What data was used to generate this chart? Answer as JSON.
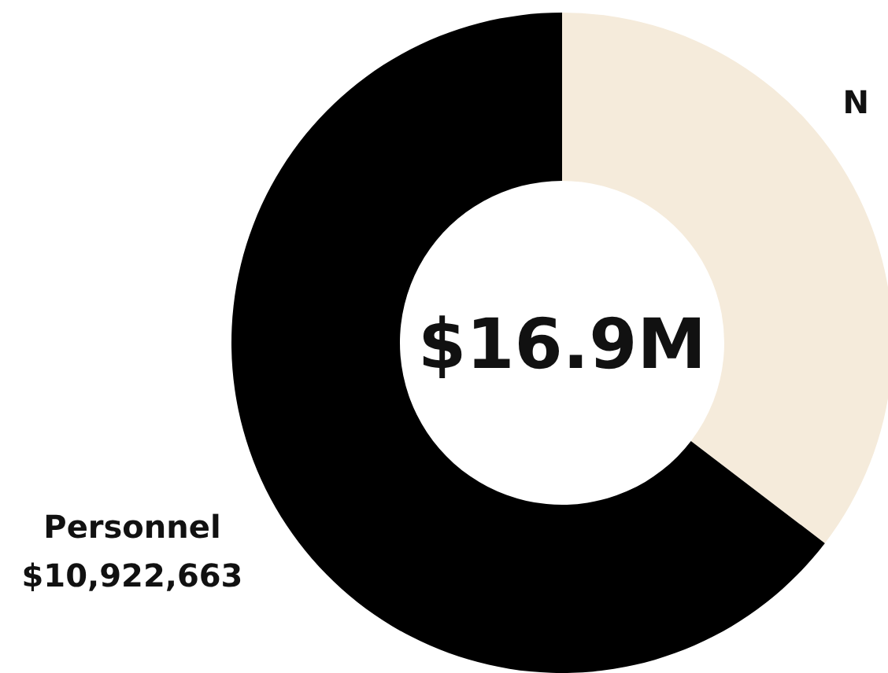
{
  "chart_data": {
    "type": "donut",
    "categories": [
      "N",
      "Personnel"
    ],
    "values": [
      5980000,
      10922663
    ],
    "value_labels": [
      null,
      "$10,922,663"
    ],
    "colors": [
      "#f5ebdb",
      "#000000"
    ],
    "annotations": [
      "$16.9M"
    ],
    "legend": false
  }
}
